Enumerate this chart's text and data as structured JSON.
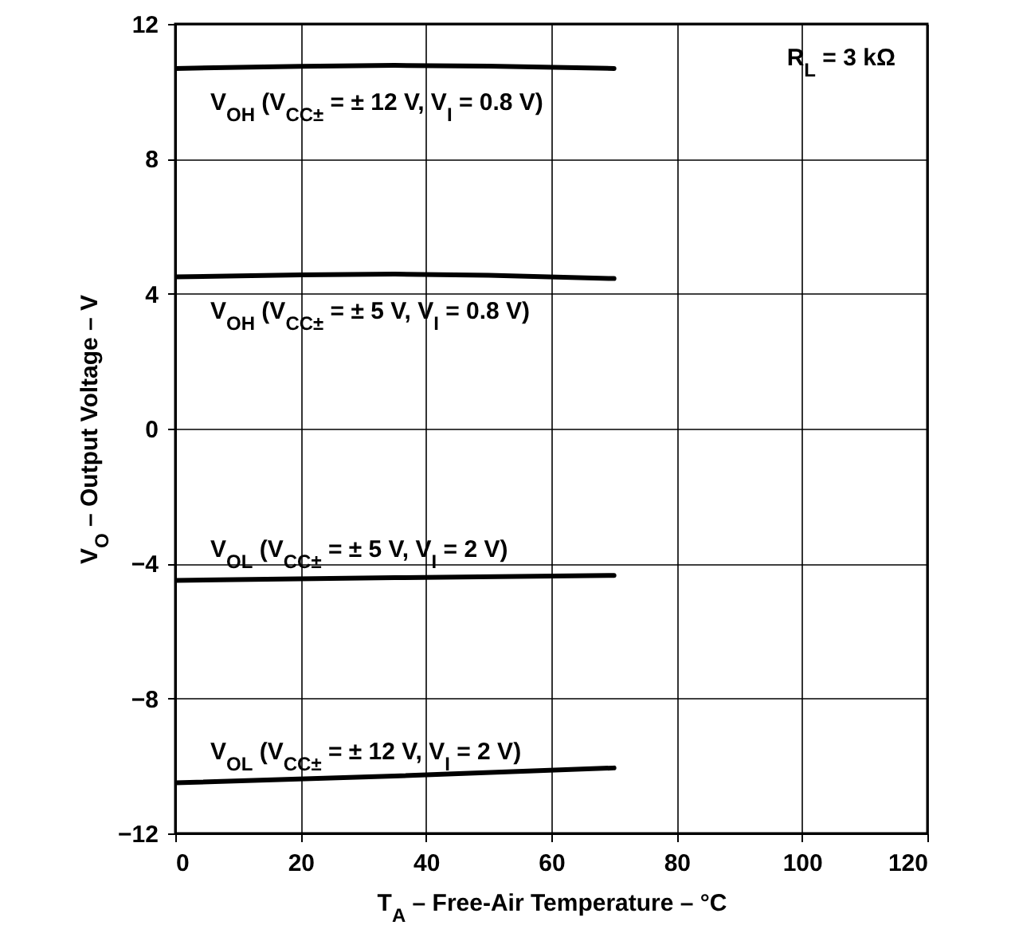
{
  "chart_data": {
    "type": "line",
    "xlabel": "T$_{A}$ – Free-Air Temperature – °C",
    "ylabel": "V$_{O}$ – Output Voltage – V",
    "xlim": [
      0,
      120
    ],
    "xticks": [
      0,
      20,
      40,
      60,
      80,
      100,
      120
    ],
    "ylim": [
      -12,
      12
    ],
    "yticks": [
      {
        "value": -12,
        "label": "−12"
      },
      {
        "value": -8,
        "label": "−8"
      },
      {
        "value": -4,
        "label": "−4"
      },
      0,
      4,
      8,
      12
    ],
    "grid": true,
    "line_style": "solid",
    "marker": "none",
    "annotations": [
      "R$_{L}$ = 3 kΩ"
    ],
    "series": [
      {
        "name": "V$_{OH}$ (V$_{CC±}$ = ± 12 V, V$_{I}$ = 0.8 V)",
        "color": "#000000",
        "x": [
          0,
          20,
          35,
          50,
          70
        ],
        "values": [
          10.68,
          10.74,
          10.77,
          10.75,
          10.68
        ]
      },
      {
        "name": "V$_{OH}$ (V$_{CC±}$ = ± 5 V, V$_{I}$ = 0.8 V)",
        "color": "#000000",
        "x": [
          0,
          20,
          35,
          50,
          70
        ],
        "values": [
          4.5,
          4.56,
          4.58,
          4.55,
          4.45
        ]
      },
      {
        "name": "V$_{OL}$ (V$_{CC±}$ = ± 5 V, V$_{I}$ = 2 V)",
        "color": "#000000",
        "x": [
          0,
          35,
          70
        ],
        "values": [
          -4.5,
          -4.42,
          -4.35
        ]
      },
      {
        "name": "V$_{OL}$ (V$_{CC±}$ = ± 12 V, V$_{I}$ = 2 V)",
        "color": "#000000",
        "x": [
          0,
          35,
          70
        ],
        "values": [
          -10.5,
          -10.3,
          -10.06
        ]
      }
    ]
  }
}
